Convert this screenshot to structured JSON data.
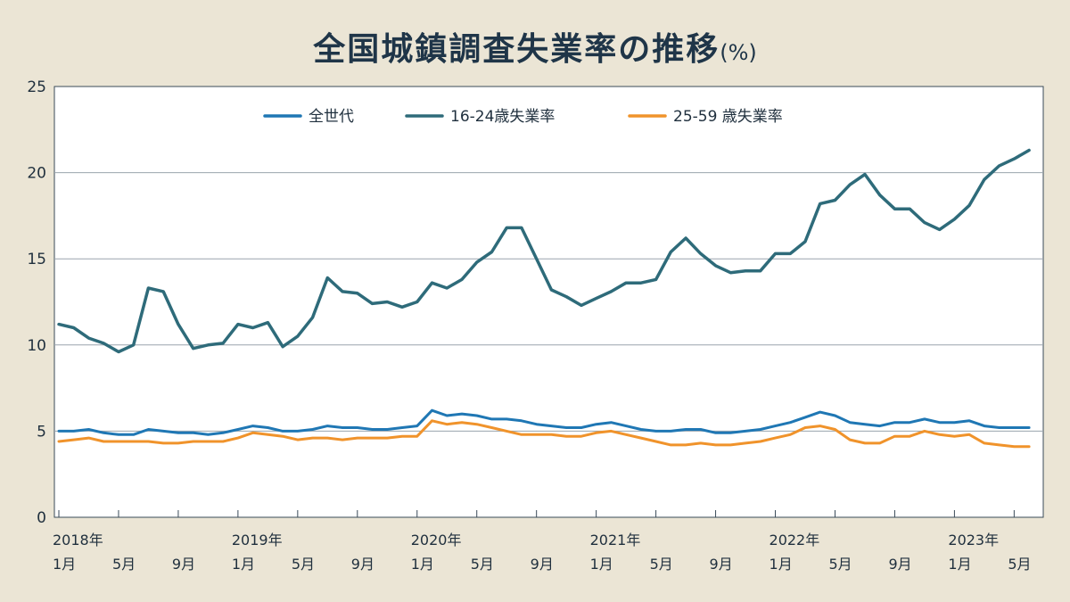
{
  "title": "全国城鎮調査失業率の推移",
  "title_unit": "(%)",
  "chart_data": {
    "type": "line",
    "title": "全国城鎮調査失業率の推移(%)",
    "xlabel": "",
    "ylabel": "",
    "ylim": [
      0,
      25
    ],
    "yticks": [
      "0",
      "5",
      "10",
      "15",
      "20",
      "25"
    ],
    "grid": true,
    "legend_position": "top-center",
    "x_tick_labels": [
      {
        "year": "2018年",
        "month": "1月"
      },
      {
        "year": "",
        "month": "5月"
      },
      {
        "year": "",
        "month": "9月"
      },
      {
        "year": "2019年",
        "month": "1月"
      },
      {
        "year": "",
        "month": "5月"
      },
      {
        "year": "",
        "month": "9月"
      },
      {
        "year": "2020年",
        "month": "1月"
      },
      {
        "year": "",
        "month": "5月"
      },
      {
        "year": "",
        "month": "9月"
      },
      {
        "year": "2021年",
        "month": "1月"
      },
      {
        "year": "",
        "month": "5月"
      },
      {
        "year": "",
        "month": "9月"
      },
      {
        "year": "2022年",
        "month": "1月"
      },
      {
        "year": "",
        "month": "5月"
      },
      {
        "year": "",
        "month": "9月"
      },
      {
        "year": "2023年",
        "month": "1月"
      },
      {
        "year": "",
        "month": "5月"
      }
    ],
    "x": [
      "2018-01",
      "2018-02",
      "2018-03",
      "2018-04",
      "2018-05",
      "2018-06",
      "2018-07",
      "2018-08",
      "2018-09",
      "2018-10",
      "2018-11",
      "2018-12",
      "2019-01",
      "2019-02",
      "2019-03",
      "2019-04",
      "2019-05",
      "2019-06",
      "2019-07",
      "2019-08",
      "2019-09",
      "2019-10",
      "2019-11",
      "2019-12",
      "2020-01",
      "2020-02",
      "2020-03",
      "2020-04",
      "2020-05",
      "2020-06",
      "2020-07",
      "2020-08",
      "2020-09",
      "2020-10",
      "2020-11",
      "2020-12",
      "2021-01",
      "2021-02",
      "2021-03",
      "2021-04",
      "2021-05",
      "2021-06",
      "2021-07",
      "2021-08",
      "2021-09",
      "2021-10",
      "2021-11",
      "2021-12",
      "2022-01",
      "2022-02",
      "2022-03",
      "2022-04",
      "2022-05",
      "2022-06",
      "2022-07",
      "2022-08",
      "2022-09",
      "2022-10",
      "2022-11",
      "2022-12",
      "2023-01",
      "2023-02",
      "2023-03",
      "2023-04",
      "2023-05",
      "2023-06"
    ],
    "series": [
      {
        "name": "全世代",
        "color": "#1f77b4",
        "values": [
          5.0,
          5.0,
          5.1,
          4.9,
          4.8,
          4.8,
          5.1,
          5.0,
          4.9,
          4.9,
          4.8,
          4.9,
          5.1,
          5.3,
          5.2,
          5.0,
          5.0,
          5.1,
          5.3,
          5.2,
          5.2,
          5.1,
          5.1,
          5.2,
          5.3,
          6.2,
          5.9,
          6.0,
          5.9,
          5.7,
          5.7,
          5.6,
          5.4,
          5.3,
          5.2,
          5.2,
          5.4,
          5.5,
          5.3,
          5.1,
          5.0,
          5.0,
          5.1,
          5.1,
          4.9,
          4.9,
          5.0,
          5.1,
          5.3,
          5.5,
          5.8,
          6.1,
          5.9,
          5.5,
          5.4,
          5.3,
          5.5,
          5.5,
          5.7,
          5.5,
          5.5,
          5.6,
          5.3,
          5.2,
          5.2,
          5.2
        ]
      },
      {
        "name": "16-24歳失業率",
        "color": "#2e6b7a",
        "values": [
          11.2,
          11.0,
          10.4,
          10.1,
          9.6,
          10.0,
          13.3,
          13.1,
          11.2,
          9.8,
          10.0,
          10.1,
          11.2,
          11.0,
          11.3,
          9.9,
          10.5,
          11.6,
          13.9,
          13.1,
          13.0,
          12.4,
          12.5,
          12.2,
          12.5,
          13.6,
          13.3,
          13.8,
          14.8,
          15.4,
          16.8,
          16.8,
          15.0,
          13.2,
          12.8,
          12.3,
          12.7,
          13.1,
          13.6,
          13.6,
          13.8,
          15.4,
          16.2,
          15.3,
          14.6,
          14.2,
          14.3,
          14.3,
          15.3,
          15.3,
          16.0,
          18.2,
          18.4,
          19.3,
          19.9,
          18.7,
          17.9,
          17.9,
          17.1,
          16.7,
          17.3,
          18.1,
          19.6,
          20.4,
          20.8,
          21.3
        ]
      },
      {
        "name": "25-59 歳失業率",
        "color": "#f0932b",
        "values": [
          4.4,
          4.5,
          4.6,
          4.4,
          4.4,
          4.4,
          4.4,
          4.3,
          4.3,
          4.4,
          4.4,
          4.4,
          4.6,
          4.9,
          4.8,
          4.7,
          4.5,
          4.6,
          4.6,
          4.5,
          4.6,
          4.6,
          4.6,
          4.7,
          4.7,
          5.6,
          5.4,
          5.5,
          5.4,
          5.2,
          5.0,
          4.8,
          4.8,
          4.8,
          4.7,
          4.7,
          4.9,
          5.0,
          4.8,
          4.6,
          4.4,
          4.2,
          4.2,
          4.3,
          4.2,
          4.2,
          4.3,
          4.4,
          4.6,
          4.8,
          5.2,
          5.3,
          5.1,
          4.5,
          4.3,
          4.3,
          4.7,
          4.7,
          5.0,
          4.8,
          4.7,
          4.8,
          4.3,
          4.2,
          4.1,
          4.1
        ]
      }
    ]
  }
}
